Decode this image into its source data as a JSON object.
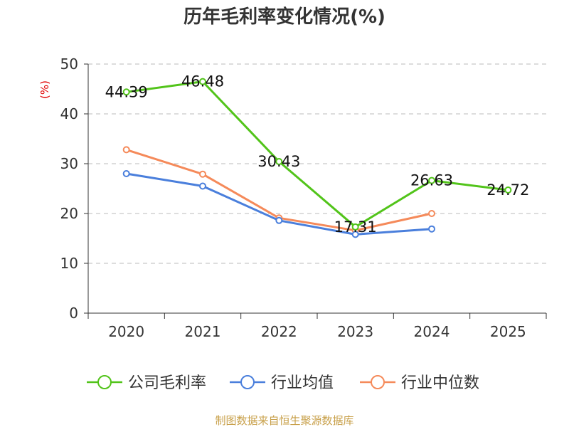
{
  "title": "历年毛利率变化情况(%)",
  "source": "制图数据来自恒生聚源数据库",
  "chart_data": {
    "type": "line",
    "title": "历年毛利率变化情况(%)",
    "ylabel": "(%)",
    "xlabel": "",
    "ylim": [
      0,
      50
    ],
    "yticks": [
      0,
      10,
      20,
      30,
      40,
      50
    ],
    "grid": true,
    "legend_position": "bottom",
    "categories": [
      "2020",
      "2021",
      "2022",
      "2023",
      "2024",
      "2025"
    ],
    "series": [
      {
        "name": "公司毛利率",
        "color": "#52c41a",
        "values": [
          44.39,
          46.48,
          30.43,
          17.31,
          26.63,
          24.72
        ],
        "labels": [
          "44.39",
          "46.48",
          "30.43",
          "17.31",
          "26.63",
          "24.72"
        ]
      },
      {
        "name": "行业均值",
        "color": "#4a7fdc",
        "values": [
          28.0,
          25.5,
          18.6,
          15.8,
          16.9,
          null
        ]
      },
      {
        "name": "行业中位数",
        "color": "#f58a5a",
        "values": [
          32.8,
          27.9,
          19.1,
          16.6,
          20.0,
          null
        ]
      }
    ]
  }
}
